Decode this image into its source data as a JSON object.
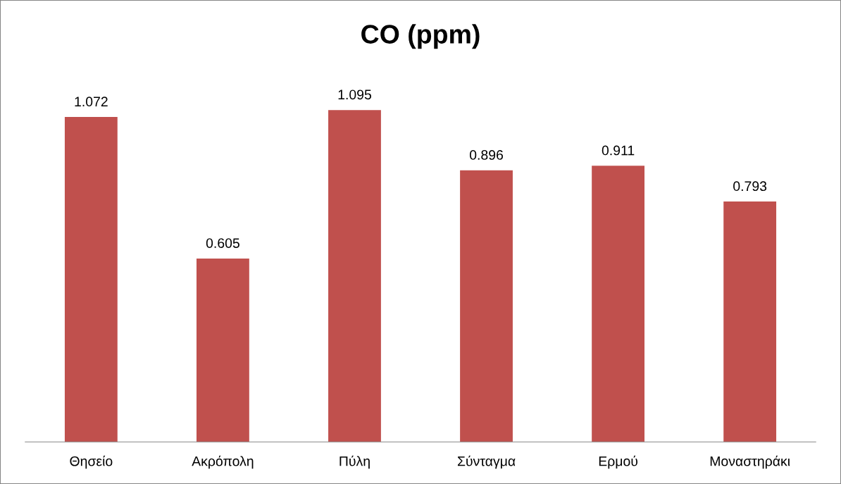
{
  "chart_data": {
    "type": "bar",
    "title": "CO (ppm)",
    "categories": [
      "Θησείο",
      "Ακρόπολη",
      "Πύλη",
      "Σύνταγμα",
      "Ερμού",
      "Μοναστηράκι"
    ],
    "values": [
      1.072,
      0.605,
      1.095,
      0.896,
      0.911,
      0.793
    ],
    "color": "#c0504d",
    "data_labels": true,
    "tick_labels": "x",
    "grid": false,
    "legend": false
  }
}
